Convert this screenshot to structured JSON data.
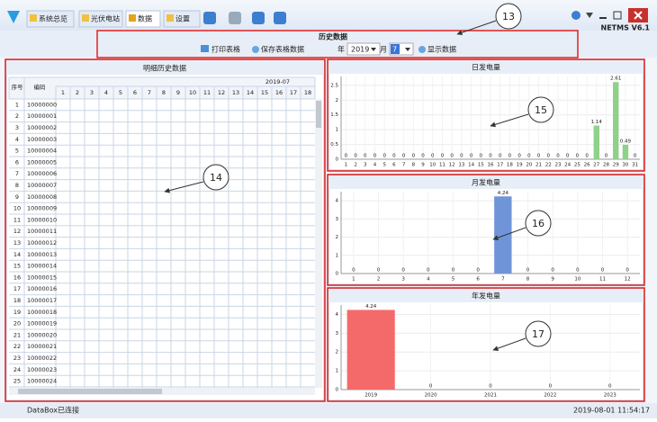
{
  "tabs": [
    "系统总览",
    "光伏电站",
    "数据",
    "设置"
  ],
  "app_title": "NETMS V6.1",
  "toolbar": {
    "title": "历史数据",
    "print": "打印表格",
    "save": "保存表格数据",
    "year_label": "年",
    "year": "2019",
    "month_label": "月",
    "month": "7",
    "show": "显示数据"
  },
  "table": {
    "title": "明细历史数据",
    "headers": [
      "序号",
      "编码"
    ],
    "period": "2019-07",
    "days": [
      "1",
      "2",
      "3",
      "4",
      "5",
      "6",
      "7",
      "8",
      "9",
      "10",
      "11",
      "12",
      "13",
      "14",
      "15",
      "16",
      "17",
      "18"
    ],
    "rows": [
      [
        "1",
        "10000000"
      ],
      [
        "2",
        "10000001"
      ],
      [
        "3",
        "10000002"
      ],
      [
        "4",
        "10000003"
      ],
      [
        "5",
        "10000004"
      ],
      [
        "6",
        "10000005"
      ],
      [
        "7",
        "10000006"
      ],
      [
        "8",
        "10000007"
      ],
      [
        "9",
        "10000008"
      ],
      [
        "10",
        "10000009"
      ],
      [
        "11",
        "10000010"
      ],
      [
        "12",
        "10000011"
      ],
      [
        "13",
        "10000012"
      ],
      [
        "14",
        "10000013"
      ],
      [
        "15",
        "10000014"
      ],
      [
        "16",
        "10000015"
      ],
      [
        "17",
        "10000016"
      ],
      [
        "18",
        "10000017"
      ],
      [
        "19",
        "10000018"
      ],
      [
        "20",
        "10000019"
      ],
      [
        "21",
        "10000020"
      ],
      [
        "22",
        "10000021"
      ],
      [
        "23",
        "10000022"
      ],
      [
        "24",
        "10000023"
      ],
      [
        "25",
        "10000024"
      ]
    ]
  },
  "status": {
    "connection": "DataBox已连接",
    "time": "2019-08-01 11:54:17"
  },
  "annotations": [
    "13",
    "14",
    "15",
    "16",
    "17"
  ],
  "chart_data": [
    {
      "type": "bar",
      "title": "日发电量",
      "categories": [
        "1",
        "2",
        "3",
        "4",
        "5",
        "6",
        "7",
        "8",
        "9",
        "10",
        "11",
        "12",
        "13",
        "14",
        "15",
        "16",
        "17",
        "18",
        "19",
        "20",
        "21",
        "22",
        "23",
        "24",
        "25",
        "26",
        "27",
        "28",
        "29",
        "30",
        "31"
      ],
      "values": [
        0,
        0,
        0,
        0,
        0,
        0,
        0,
        0,
        0,
        0,
        0,
        0,
        0,
        0,
        0,
        0,
        0,
        0,
        0,
        0,
        0,
        0,
        0,
        0,
        0,
        0,
        1.14,
        0,
        2.61,
        0.49,
        0
      ],
      "color": "#8fd18a",
      "ylim": [
        0,
        2.8
      ],
      "yticks": [
        0,
        0.5,
        1,
        1.5,
        2,
        2.5
      ],
      "grid": true
    },
    {
      "type": "bar",
      "title": "月发电量",
      "categories": [
        "1",
        "2",
        "3",
        "4",
        "5",
        "6",
        "7",
        "8",
        "9",
        "10",
        "11",
        "12"
      ],
      "values": [
        0,
        0,
        0,
        0,
        0,
        0,
        4.24,
        0,
        0,
        0,
        0,
        0
      ],
      "color": "#6f95d8",
      "ylim": [
        0,
        4.5
      ],
      "yticks": [
        0,
        1,
        2,
        3,
        4
      ],
      "grid": true
    },
    {
      "type": "bar",
      "title": "年发电量",
      "categories": [
        "2019",
        "2020",
        "2021",
        "2022",
        "2023"
      ],
      "values": [
        4.24,
        0,
        0,
        0,
        0
      ],
      "color": "#f46a6a",
      "ylim": [
        0,
        4.5
      ],
      "yticks": [
        0,
        1,
        2,
        3,
        4
      ],
      "grid": true
    }
  ]
}
